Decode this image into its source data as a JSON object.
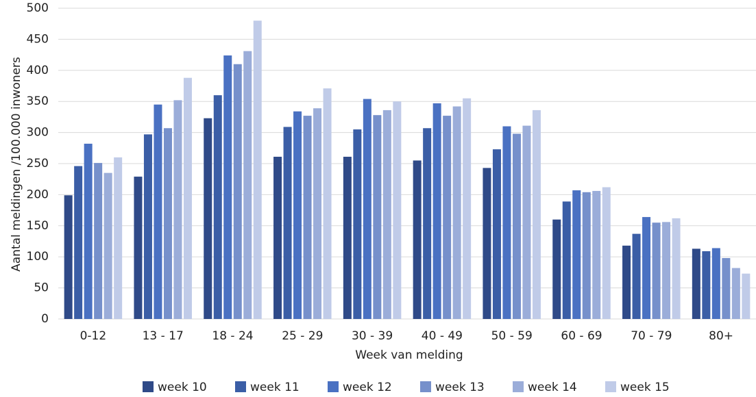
{
  "chart_data": {
    "type": "bar",
    "categories": [
      "0-12",
      "13 - 17",
      "18 - 24",
      "25 - 29",
      "30 - 39",
      "40 - 49",
      "50 - 59",
      "60 - 69",
      "70 - 79",
      "80+"
    ],
    "series": [
      {
        "name": "week 10",
        "color": "#2f4a88",
        "values": [
          199,
          229,
          323,
          261,
          261,
          255,
          243,
          160,
          118,
          113
        ]
      },
      {
        "name": "week 11",
        "color": "#3b5ea6",
        "values": [
          246,
          297,
          360,
          309,
          305,
          307,
          273,
          189,
          137,
          109
        ]
      },
      {
        "name": "week 12",
        "color": "#4a71c2",
        "values": [
          282,
          345,
          424,
          334,
          354,
          347,
          310,
          207,
          164,
          114
        ]
      },
      {
        "name": "week 13",
        "color": "#7690cb",
        "values": [
          251,
          307,
          410,
          327,
          328,
          327,
          298,
          204,
          155,
          98
        ]
      },
      {
        "name": "week 14",
        "color": "#9badd9",
        "values": [
          235,
          352,
          431,
          339,
          336,
          342,
          311,
          206,
          156,
          82
        ]
      },
      {
        "name": "week 15",
        "color": "#c0cbe8",
        "values": [
          260,
          388,
          480,
          371,
          350,
          355,
          336,
          212,
          162,
          73
        ]
      }
    ],
    "ylim": [
      0,
      500
    ],
    "yticks": [
      0,
      50,
      100,
      150,
      200,
      250,
      300,
      350,
      400,
      450,
      500
    ],
    "xlabel": "Week van melding",
    "ylabel": "Aantal meldingen /100.000 inwoners",
    "grid": true,
    "legend": "bottom"
  }
}
